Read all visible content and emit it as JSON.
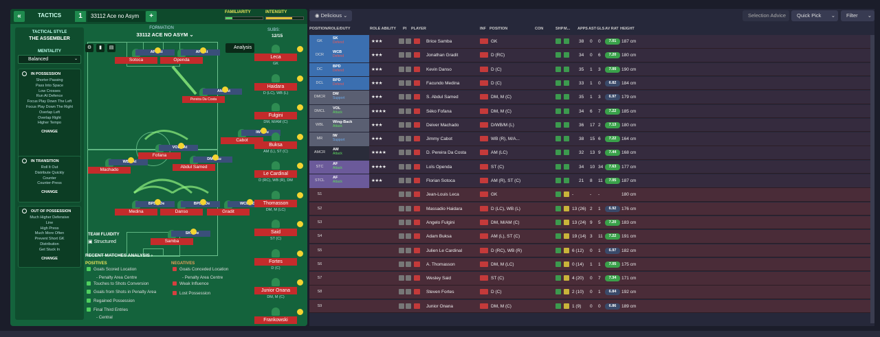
{
  "tabs": {
    "back": "«",
    "tactics": "TACTICS",
    "num": "1",
    "tactic_name": "33112 Ace no Asym",
    "add": "+"
  },
  "meters": {
    "familiarity": "FAMILIARITY",
    "intensity": "INTENSITY"
  },
  "left": {
    "style_label": "TACTICAL STYLE",
    "style": "THE ASSEMBLER",
    "mentality_label": "MENTALITY",
    "mentality": "Balanced",
    "possession": {
      "title": "IN POSSESSION",
      "items": [
        "Shorter Passing",
        "Pass Into Space",
        "Low Crosses",
        "Run At Defence",
        "Focus Play Down The Left",
        "Focus Play Down The Right",
        "Overlap Left",
        "Overlap Right",
        "Higher Tempo"
      ],
      "change": "CHANGE"
    },
    "transition": {
      "title": "IN TRANSITION",
      "items": [
        "Roll It Out",
        "Distribute Quickly",
        "Counter",
        "Counter-Press"
      ],
      "change": "CHANGE"
    },
    "oop": {
      "title": "OUT OF POSSESSION",
      "items": [
        "Much Higher Defensive",
        "Line",
        "High Press",
        "Much More Often",
        "Prevent Short GK",
        "Distribution",
        "Get Stuck In"
      ],
      "change": "CHANGE"
    }
  },
  "formation": {
    "label": "FORMATION",
    "name": "33112 ACE NO ASYM",
    "subs_label": "SUBS:",
    "subs": "12/15",
    "analysis": "Analysis"
  },
  "fluidity": {
    "label": "TEAM FLUIDITY",
    "value": "Structured"
  },
  "players": [
    {
      "role": "AF - At",
      "name": "Sotoca"
    },
    {
      "role": "AF - At",
      "name": "Openda"
    },
    {
      "role": "AM - At",
      "name": "Pereira Da Costa"
    },
    {
      "role": "IW - Su",
      "name": "Cabot"
    },
    {
      "role": "VOL - At",
      "name": "Fofana"
    },
    {
      "role": "WB - At",
      "name": "Machado"
    },
    {
      "role": "DM - Su",
      "name": "Abdul Samed"
    },
    {
      "role": "BPD - De",
      "name": "Medina"
    },
    {
      "role": "BPD - De",
      "name": "Danso"
    },
    {
      "role": "WCB - De",
      "name": "Gradit"
    },
    {
      "role": "SK - De",
      "name": "Samba"
    }
  ],
  "subs": [
    {
      "name": "Leca",
      "pos": "GK"
    },
    {
      "name": "Haidara",
      "pos": "D (LC), WB (L)"
    },
    {
      "name": "Fulgini",
      "pos": "DM, M/AM (C)"
    },
    {
      "name": "Buksa",
      "pos": "AM (L), ST (C)"
    },
    {
      "name": "Le Cardinal",
      "pos": "D (RC), WB (R), DM"
    },
    {
      "name": "Thomasson",
      "pos": "DM, M (LC)"
    },
    {
      "name": "Said",
      "pos": "ST (C)"
    },
    {
      "name": "Fortes",
      "pos": "D (C)"
    },
    {
      "name": "Junior Onana",
      "pos": "DM, M (C)"
    },
    {
      "name": "Frankowski",
      "pos": ""
    }
  ],
  "analysis": {
    "title": "RECENT MATCHES ANALYSIS",
    "pos_label": "POSITIVES",
    "neg_label": "NEGATIVES",
    "positives": [
      "Goals Scored Location",
      "- Penalty Area Centre",
      "Touches to Shots Conversion",
      "Goals from Shots in Penalty Area",
      "Regained Possession",
      "Final Third Entries",
      "- Central"
    ],
    "negatives": [
      "Goals Conceded Location",
      "- Penalty Area Centre",
      "Weak Influence",
      "Lost Possession"
    ]
  },
  "toolbar": {
    "view": "Delicious",
    "selection": "Selection Advice",
    "quick_pick": "Quick Pick",
    "filter": "Filter"
  },
  "columns": [
    "POSITION/ROLE/DUTY",
    "ROLE ABILITY",
    "PI",
    "PLAYER",
    "INF",
    "POSITION",
    "CON",
    "SHP",
    "M...",
    "APPS",
    "AST",
    "GLS",
    "AV RAT",
    "HEIGHT"
  ],
  "rows": [
    {
      "pos": "GK",
      "role": "SK",
      "duty": "Defend",
      "stars": "★★★",
      "name": "Brice Samba",
      "inf": "",
      "position": "GK",
      "apps": "38",
      "ast": "0",
      "gls": "0",
      "av": "7.01",
      "height": "187 cm",
      "c": "#3b6fb0"
    },
    {
      "pos": "DCR",
      "role": "WCB",
      "duty": "Defend",
      "stars": "★★★",
      "name": "Jonathan Gradit",
      "inf": "Inj",
      "position": "D (RC)",
      "apps": "34",
      "ast": "0",
      "gls": "6",
      "av": "7.20",
      "height": "180 cm",
      "c": "#3b6fb0"
    },
    {
      "pos": "DC",
      "role": "BPD",
      "duty": "Defend",
      "stars": "★★★",
      "name": "Kevin Danso",
      "inf": "Inj",
      "position": "D (C)",
      "apps": "35",
      "ast": "1",
      "gls": "3",
      "av": "7.00",
      "height": "190 cm",
      "c": "#3b6fb0"
    },
    {
      "pos": "DCL",
      "role": "BPD",
      "duty": "Defend",
      "stars": "★★★",
      "name": "Facundo Medina",
      "inf": "Inj",
      "position": "D (C)",
      "apps": "33",
      "ast": "1",
      "gls": "0",
      "av": "6.82",
      "height": "184 cm",
      "c": "#3b6fb0"
    },
    {
      "pos": "DMCR",
      "role": "DM",
      "duty": "Support",
      "stars": "★★★",
      "name": "S. Abdul Samed",
      "inf": "Inj",
      "position": "DM, M (C)",
      "apps": "35",
      "ast": "1",
      "gls": "3",
      "av": "6.97",
      "height": "179 cm",
      "c": "#5a5f72"
    },
    {
      "pos": "DMCL",
      "role": "VOL",
      "duty": "Attack",
      "stars": "★★★★",
      "name": "Séko Fofana",
      "inf": "Inj",
      "position": "DM, M (C)",
      "apps": "34",
      "ast": "6",
      "gls": "7",
      "av": "7.22",
      "height": "185 cm",
      "c": "#5a5f72"
    },
    {
      "pos": "WBL",
      "role": "Wing-Back",
      "duty": "Attack",
      "stars": "★★★",
      "name": "Deiver Machado",
      "inf": "Inj",
      "position": "D/WB/M (L)",
      "apps": "36",
      "ast": "17",
      "gls": "2",
      "av": "7.13",
      "height": "180 cm",
      "c": "#5a5f72"
    },
    {
      "pos": "MR",
      "role": "IW",
      "duty": "Support",
      "stars": "★★★",
      "name": "Jimmy Cabot",
      "inf": "Inj",
      "position": "WB (R), M/A...",
      "apps": "38",
      "ast": "15",
      "gls": "6",
      "av": "7.22",
      "height": "164 cm",
      "c": "#5a5f72"
    },
    {
      "pos": "AMCR",
      "role": "AM",
      "duty": "Attack",
      "stars": "★★★★",
      "name": "D. Pereira Da Costa",
      "inf": "Inj",
      "position": "AM (LC)",
      "apps": "32",
      "ast": "13",
      "gls": "9",
      "av": "7.44",
      "height": "168 cm",
      "c": "#2a2c3a"
    },
    {
      "pos": "STC",
      "role": "AF",
      "duty": "Attack",
      "stars": "★★★★",
      "name": "Loïs Openda",
      "inf": "Inj",
      "position": "ST (C)",
      "apps": "34",
      "ast": "10",
      "gls": "34",
      "av": "7.63",
      "height": "177 cm",
      "c": "#6b5a9a"
    },
    {
      "pos": "STCL",
      "role": "AF",
      "duty": "Attack",
      "stars": "★★★",
      "name": "Florian Sotoca",
      "inf": "Inj",
      "position": "AM (R), ST (C)",
      "apps": "21",
      "ast": "8",
      "gls": "11",
      "av": "7.05",
      "height": "187 cm",
      "c": "#6b5a9a"
    },
    {
      "pos": "S1",
      "role": "",
      "duty": "",
      "stars": "",
      "name": "Jean-Louis Leca",
      "inf": "",
      "position": "GK",
      "apps": "-",
      "ast": "-",
      "gls": "-",
      "av": "",
      "height": "180 cm",
      "c": ""
    },
    {
      "pos": "S2",
      "role": "",
      "duty": "",
      "stars": "",
      "name": "Massadio Haidara",
      "inf": "Inj",
      "position": "D (LC), WB (L)",
      "apps": "13 (26)",
      "ast": "2",
      "gls": "1",
      "av": "6.92",
      "height": "176 cm",
      "c": ""
    },
    {
      "pos": "S3",
      "role": "",
      "duty": "",
      "stars": "",
      "name": "Angelo Fulgini",
      "inf": "Inj",
      "position": "DM, M/AM (C)",
      "apps": "13 (24)",
      "ast": "9",
      "gls": "5",
      "av": "7.20",
      "height": "183 cm",
      "c": ""
    },
    {
      "pos": "S4",
      "role": "",
      "duty": "",
      "stars": "",
      "name": "Adam Buksa",
      "inf": "Inj",
      "position": "AM (L), ST (C)",
      "apps": "19 (14)",
      "ast": "3",
      "gls": "11",
      "av": "7.22",
      "height": "191 cm",
      "c": ""
    },
    {
      "pos": "S5",
      "role": "",
      "duty": "",
      "stars": "",
      "name": "Julien Le Cardinal",
      "inf": "Inj",
      "position": "D (RC), WB (R)",
      "apps": "6 (12)",
      "ast": "0",
      "gls": "1",
      "av": "6.97",
      "height": "182 cm",
      "c": ""
    },
    {
      "pos": "S6",
      "role": "",
      "duty": "",
      "stars": "",
      "name": "A. Thomasson",
      "inf": "Inj",
      "position": "DM, M (LC)",
      "apps": "0 (14)",
      "ast": "1",
      "gls": "1",
      "av": "7.05",
      "height": "175 cm",
      "c": ""
    },
    {
      "pos": "S7",
      "role": "",
      "duty": "",
      "stars": "",
      "name": "Wesley Said",
      "inf": "Inj",
      "position": "ST (C)",
      "apps": "4 (20)",
      "ast": "0",
      "gls": "7",
      "av": "7.34",
      "height": "171 cm",
      "c": ""
    },
    {
      "pos": "S8",
      "role": "",
      "duty": "",
      "stars": "",
      "name": "Steven Fortes",
      "inf": "Inj",
      "position": "D (C)",
      "apps": "2 (10)",
      "ast": "0",
      "gls": "1",
      "av": "6.84",
      "height": "192 cm",
      "c": ""
    },
    {
      "pos": "S9",
      "role": "",
      "duty": "",
      "stars": "",
      "name": "Junior Onana",
      "inf": "Inj",
      "position": "DM, M (C)",
      "apps": "1 (9)",
      "ast": "0",
      "gls": "0",
      "av": "6.86",
      "height": "189 cm",
      "c": ""
    }
  ],
  "colors": {
    "panel": "#14633c",
    "accent": "#1f8a4e",
    "red": "#c42b2b",
    "star": "#f0c83a"
  }
}
